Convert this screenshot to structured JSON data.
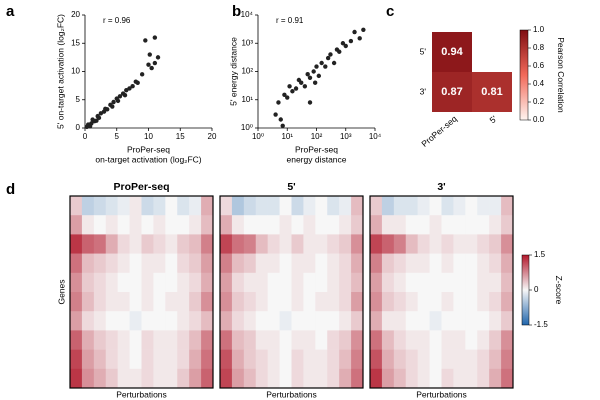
{
  "chart_data": [
    {
      "type": "scatter",
      "panel": "a",
      "annotation": "r = 0.96",
      "color": "#222222",
      "xlabel": [
        "ProPer-seq",
        "on-target activation (log₂FC)"
      ],
      "ylabel": "5' on-target activation (log₂FC)",
      "xlim": [
        0,
        20
      ],
      "ylim": [
        0,
        20
      ],
      "xticks": [
        0,
        5,
        10,
        15,
        20
      ],
      "yticks": [
        0,
        5,
        10,
        15,
        20
      ],
      "x": [
        0.3,
        0.5,
        0.8,
        1,
        1.2,
        1.5,
        1.8,
        2,
        2.2,
        2.5,
        3,
        3.2,
        3.5,
        4,
        4.3,
        4.5,
        5,
        5.2,
        5.5,
        6,
        6.3,
        6.5,
        7,
        7.5,
        8,
        8.3,
        9,
        9.5,
        10,
        10.2,
        10.5,
        11,
        11,
        11.5
      ],
      "y": [
        0.2,
        0.6,
        0.3,
        0.8,
        1.5,
        1.2,
        1.3,
        2.1,
        1.8,
        2.6,
        2.9,
        3.4,
        3.3,
        4.1,
        3.8,
        4.6,
        5.2,
        4.8,
        5.6,
        6.1,
        5.8,
        6.7,
        7,
        7.4,
        8.2,
        8,
        9.5,
        15.5,
        11.2,
        13,
        10.6,
        11.5,
        16,
        12.5
      ]
    },
    {
      "type": "scatter",
      "panel": "b",
      "annotation": "r = 0.91",
      "color": "#222222",
      "log": true,
      "xlabel": [
        "ProPer-seq",
        "energy distance"
      ],
      "ylabel": "5' energy distance",
      "xlim": [
        1,
        10000
      ],
      "ylim": [
        1,
        10000
      ],
      "xticks": [
        {
          "value": 1,
          "label": "10⁰"
        },
        {
          "value": 10,
          "label": "10¹"
        },
        {
          "value": 100,
          "label": "10²"
        },
        {
          "value": 1000,
          "label": "10³"
        },
        {
          "value": 10000,
          "label": "10⁴"
        }
      ],
      "yticks": [
        {
          "value": 1,
          "label": "10⁰"
        },
        {
          "value": 10,
          "label": "10¹"
        },
        {
          "value": 100,
          "label": "10²"
        },
        {
          "value": 1000,
          "label": "10³"
        },
        {
          "value": 10000,
          "label": "10⁴"
        }
      ],
      "x": [
        4,
        5,
        6,
        7,
        8,
        10,
        12,
        15,
        20,
        25,
        30,
        40,
        50,
        60,
        60,
        80,
        90,
        100,
        120,
        150,
        200,
        250,
        300,
        400,
        500,
        600,
        800,
        1000,
        1500,
        2000,
        3000,
        4000
      ],
      "y": [
        3,
        8,
        2,
        1.2,
        15,
        12,
        30,
        20,
        25,
        50,
        40,
        30,
        80,
        60,
        8,
        100,
        40,
        150,
        70,
        200,
        150,
        300,
        400,
        200,
        600,
        500,
        1000,
        800,
        1200,
        2500,
        1500,
        3000
      ]
    },
    {
      "type": "corr",
      "panel": "c",
      "rows": [
        "5'",
        "3'"
      ],
      "cols": [
        "ProPer-seq",
        "5'"
      ],
      "values": [
        [
          0.94,
          null
        ],
        [
          0.87,
          0.81
        ]
      ],
      "clim": [
        0,
        1
      ],
      "cmap": [
        "#fff5f0",
        "#f26a5a",
        "#7f0d12"
      ],
      "colorbar_label": "Pearson Correlation",
      "colorbar_ticks": [
        {
          "value": 0,
          "label": "0.0"
        },
        0.2,
        0.4,
        0.6,
        0.8,
        {
          "value": 1,
          "label": "1.0"
        }
      ]
    },
    {
      "type": "heatmaps",
      "panel": "d",
      "xlabel": "Perturbations",
      "ylabel": "Genes",
      "clim": [
        -1.5,
        1.5
      ],
      "cmap": [
        "#2166ac",
        "#f7f7f7",
        "#b2182b"
      ],
      "colorbar_label": "Z-score",
      "colorbar_ticks": [
        1.5,
        0,
        -1.5
      ],
      "panels": [
        {
          "title": "ProPer-seq",
          "values": [
            [
              0.3,
              -0.4,
              -0.3,
              -0.2,
              -0.1,
              0.1,
              -0.3,
              -0.2,
              0,
              -0.2,
              -0.1,
              0.5
            ],
            [
              0.6,
              0.1,
              0,
              0.1,
              0,
              0.1,
              0,
              0.1,
              0,
              0,
              0.1,
              0.4
            ],
            [
              1.3,
              1,
              0.9,
              0.5,
              0.2,
              0.1,
              0.3,
              0.2,
              0.1,
              0.3,
              0.4,
              0.8
            ],
            [
              0.9,
              0.4,
              0.3,
              0.2,
              0.1,
              0,
              0.1,
              0.1,
              0,
              0.2,
              0.3,
              0.6
            ],
            [
              0.7,
              0.3,
              0.2,
              0.1,
              0,
              0,
              0.1,
              0,
              0,
              0.1,
              0.2,
              0.5
            ],
            [
              0.8,
              0.4,
              0.2,
              0.1,
              0.1,
              0,
              0.1,
              0,
              0.1,
              0.1,
              0.3,
              0.7
            ],
            [
              0.6,
              0.2,
              0.1,
              0,
              0,
              -0.1,
              0,
              0,
              0,
              0.1,
              0.2,
              0.4
            ],
            [
              1,
              0.5,
              0.3,
              0.2,
              0.1,
              0,
              0.2,
              0.1,
              0.1,
              0.2,
              0.4,
              0.8
            ],
            [
              1.2,
              0.6,
              0.4,
              0.2,
              0.1,
              0,
              0.2,
              0.1,
              0.1,
              0.2,
              0.5,
              0.9
            ],
            [
              1.3,
              0.7,
              0.5,
              0.3,
              0.1,
              0.1,
              0.2,
              0.1,
              0.1,
              0.3,
              0.6,
              1
            ]
          ]
        },
        {
          "title": "5'",
          "values": [
            [
              0.2,
              -0.5,
              -0.3,
              -0.2,
              -0.2,
              0,
              -0.3,
              -0.1,
              0,
              -0.2,
              -0.1,
              0.4
            ],
            [
              0.5,
              0.1,
              0,
              0,
              0,
              0.1,
              0,
              0.1,
              0,
              0,
              0.1,
              0.3
            ],
            [
              1.2,
              0.9,
              0.8,
              0.4,
              0.2,
              0.1,
              0.3,
              0.1,
              0.1,
              0.2,
              0.3,
              0.7
            ],
            [
              0.8,
              0.4,
              0.3,
              0.1,
              0.1,
              0,
              0.1,
              0.1,
              0,
              0.1,
              0.2,
              0.5
            ],
            [
              0.6,
              0.2,
              0.1,
              0.1,
              0,
              0,
              0.1,
              0,
              0,
              0.1,
              0.2,
              0.4
            ],
            [
              0.7,
              0.3,
              0.2,
              0.1,
              0,
              0,
              0.1,
              0,
              0.1,
              0.1,
              0.2,
              0.6
            ],
            [
              0.5,
              0.2,
              0.1,
              0,
              0,
              -0.1,
              0,
              0,
              0,
              0,
              0.1,
              0.3
            ],
            [
              0.9,
              0.4,
              0.3,
              0.1,
              0.1,
              0,
              0.1,
              0.1,
              0,
              0.2,
              0.3,
              0.7
            ],
            [
              1.1,
              0.5,
              0.3,
              0.2,
              0.1,
              0,
              0.2,
              0.1,
              0.1,
              0.2,
              0.4,
              0.8
            ],
            [
              1.2,
              0.6,
              0.4,
              0.2,
              0.1,
              0,
              0.2,
              0.1,
              0.1,
              0.2,
              0.5,
              0.9
            ]
          ]
        },
        {
          "title": "3'",
          "values": [
            [
              0.3,
              -0.4,
              -0.2,
              -0.2,
              -0.1,
              0,
              -0.2,
              -0.1,
              0,
              -0.1,
              -0.1,
              0.4
            ],
            [
              0.5,
              0.1,
              0.1,
              0,
              0,
              0.1,
              0,
              0,
              0,
              0,
              0.1,
              0.3
            ],
            [
              1.2,
              1,
              0.8,
              0.4,
              0.2,
              0.1,
              0.2,
              0.1,
              0.1,
              0.2,
              0.3,
              0.7
            ],
            [
              0.8,
              0.3,
              0.2,
              0.1,
              0.1,
              0,
              0.1,
              0,
              0,
              0.1,
              0.2,
              0.5
            ],
            [
              0.6,
              0.2,
              0.1,
              0,
              0,
              0,
              0,
              0,
              0,
              0.1,
              0.1,
              0.4
            ],
            [
              0.7,
              0.3,
              0.2,
              0.1,
              0,
              0,
              0.1,
              0,
              0,
              0.1,
              0.2,
              0.5
            ],
            [
              0.5,
              0.1,
              0.1,
              0,
              0,
              -0.1,
              0,
              0,
              0,
              0,
              0.1,
              0.3
            ],
            [
              0.9,
              0.4,
              0.2,
              0.1,
              0.1,
              0,
              0.1,
              0.1,
              0,
              0.1,
              0.3,
              0.7
            ],
            [
              1.1,
              0.5,
              0.3,
              0.2,
              0.1,
              0,
              0.1,
              0.1,
              0.1,
              0.2,
              0.4,
              0.8
            ],
            [
              1.3,
              0.6,
              0.4,
              0.2,
              0.1,
              0,
              0.2,
              0.1,
              0.1,
              0.2,
              0.5,
              0.9
            ]
          ]
        }
      ]
    }
  ]
}
